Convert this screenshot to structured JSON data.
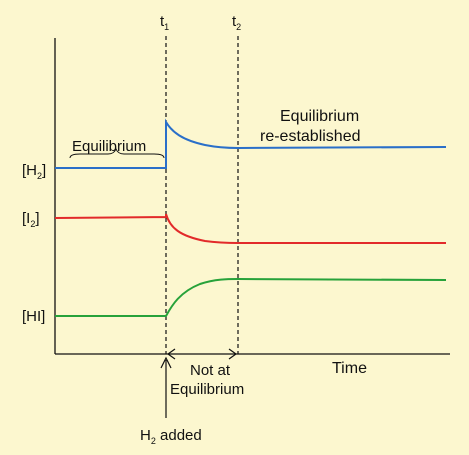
{
  "chart_data": {
    "type": "line",
    "xlabel": "Time",
    "ylabel": "",
    "x_ticks": [
      {
        "label": "t",
        "sub": "1"
      },
      {
        "label": "t",
        "sub": "2"
      }
    ],
    "y_labels": [
      {
        "label": "[H",
        "sub": "2",
        "close": "]"
      },
      {
        "label": "[I",
        "sub": "2",
        "close": "]"
      },
      {
        "label": "[HI]",
        "sub": "",
        "close": ""
      }
    ],
    "series": [
      {
        "species": "H2",
        "color": "#2a6fc9"
      },
      {
        "species": "I2",
        "color": "#e22a2a"
      },
      {
        "species": "HI",
        "color": "#27a23a"
      }
    ],
    "annotations": {
      "equilibrium": "Equilibrium",
      "reestablished_1": "Equilibrium",
      "reestablished_2": "re-established",
      "not_at_1": "Not at",
      "not_at_2": "Equilibrium",
      "h2_added_prefix": "H",
      "h2_added_sub": "2",
      "h2_added_suffix": " added"
    },
    "grid": false,
    "legend": "none"
  }
}
